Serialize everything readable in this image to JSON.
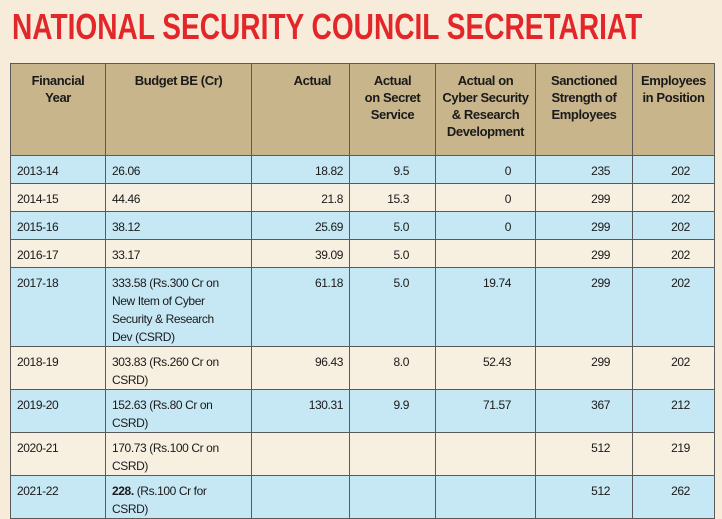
{
  "title": "NATIONAL SECURITY COUNCIL SECRETARIAT",
  "table": {
    "headers": [
      [
        "Financial",
        "Year"
      ],
      [
        "Budget  BE (Cr)"
      ],
      [
        "Actual"
      ],
      [
        "Actual",
        "on Secret",
        "Service"
      ],
      [
        "Actual on",
        "Cyber Security",
        "& Research",
        "Development"
      ],
      [
        "Sanctioned",
        "Strength of",
        "Employees"
      ],
      [
        "Employees",
        "in Position"
      ]
    ],
    "rows": [
      [
        "2013-14",
        "26.06",
        "18.82",
        "9.5",
        "0",
        "235",
        "202"
      ],
      [
        "2014-15",
        "44.46",
        "21.8",
        "15.3",
        "0",
        "299",
        "202"
      ],
      [
        "2015-16",
        "38.12",
        "25.69",
        "5.0",
        "0",
        "299",
        "202"
      ],
      [
        "2016-17",
        "33.17",
        "39.09",
        "5.0",
        null,
        "299",
        "202"
      ],
      [
        "2017-18",
        "333.58 (Rs.300 Cr on New Item of Cyber Security & Research Dev (CSRD)",
        "61.18",
        "5.0",
        "19.74",
        "299",
        "202"
      ],
      [
        "2018-19",
        "303.83 (Rs.260 Cr on CSRD)",
        "96.43",
        "8.0",
        "52.43",
        "299",
        "202"
      ],
      [
        "2019-20",
        "152.63 (Rs.80 Cr on CSRD)",
        "130.31",
        "9.9",
        "71.57",
        "367",
        "212"
      ],
      [
        "2020-21",
        "170.73 (Rs.100 Cr on CSRD)",
        null,
        null,
        null,
        "512",
        "219"
      ],
      [
        "2021-22",
        [
          "228.",
          "(Rs.100 Cr for CSRD)"
        ],
        null,
        null,
        null,
        "512",
        "262"
      ]
    ]
  }
}
